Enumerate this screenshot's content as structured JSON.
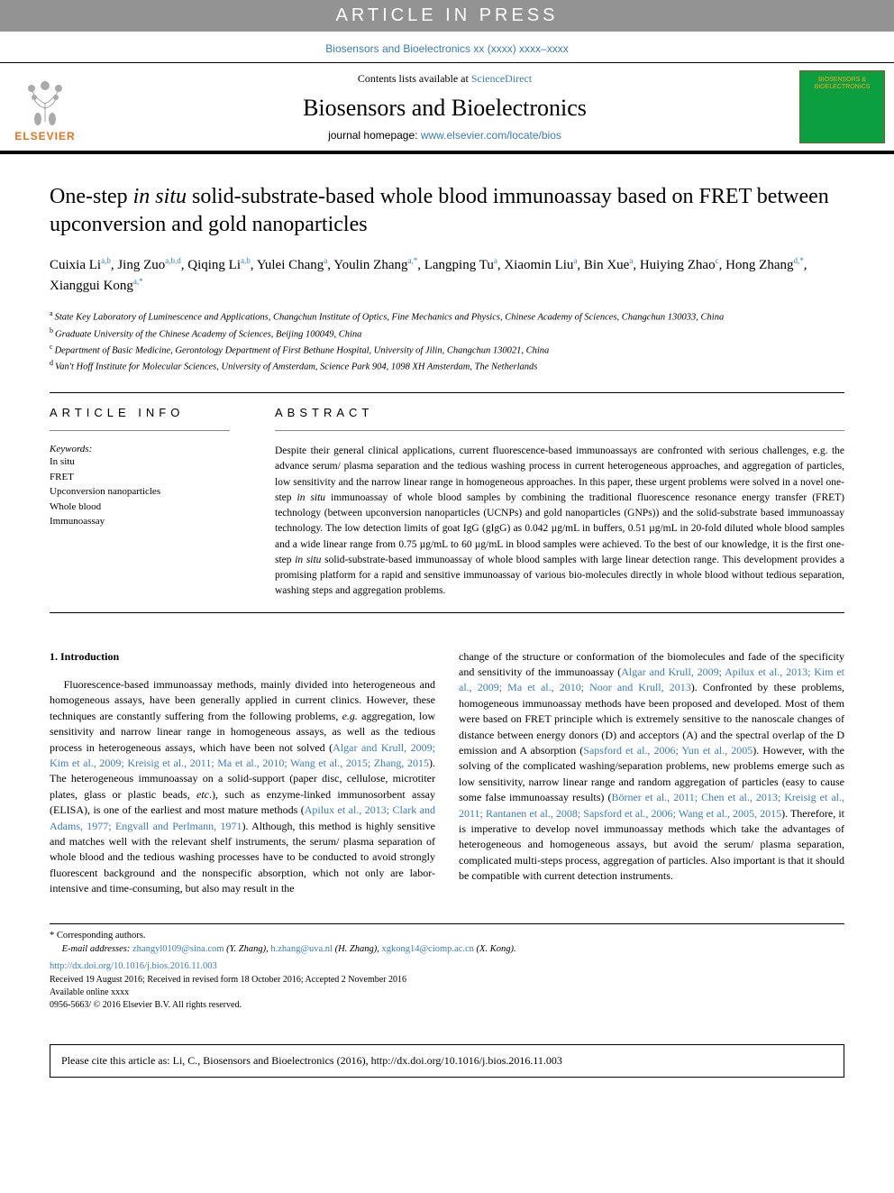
{
  "banner": "ARTICLE IN PRESS",
  "top_citation": "Biosensors and Bioelectronics xx (xxxx) xxxx–xxxx",
  "header": {
    "contents_text": "Contents lists available at ",
    "sciencedirect": "ScienceDirect",
    "journal": "Biosensors and Bioelectronics",
    "homepage_label": "journal homepage: ",
    "homepage_url": "www.elsevier.com/locate/bios",
    "publisher": "ELSEVIER",
    "cover_title": "BIOSENSORS\n& BIOELECTRONICS"
  },
  "title": {
    "pre": "One-step ",
    "italic1": "in situ",
    "rest": " solid-substrate-based whole blood immunoassay based on FRET between upconversion and gold nanoparticles"
  },
  "authors": [
    {
      "name": "Cuixia Li",
      "affs": "a,b"
    },
    {
      "name": "Jing Zuo",
      "affs": "a,b,d"
    },
    {
      "name": "Qiqing Li",
      "affs": "a,b"
    },
    {
      "name": "Yulei Chang",
      "affs": "a"
    },
    {
      "name": "Youlin Zhang",
      "affs": "a,*"
    },
    {
      "name": "Langping Tu",
      "affs": "a"
    },
    {
      "name": "Xiaomin Liu",
      "affs": "a"
    },
    {
      "name": "Bin Xue",
      "affs": "a"
    },
    {
      "name": "Huiying Zhao",
      "affs": "c"
    },
    {
      "name": "Hong Zhang",
      "affs": "d,*"
    },
    {
      "name": "Xianggui Kong",
      "affs": "a,*"
    }
  ],
  "affiliations": [
    {
      "sup": "a",
      "text": "State Key Laboratory of Luminescence and Applications, Changchun Institute of Optics, Fine Mechanics and Physics, Chinese Academy of Sciences, Changchun 130033, China"
    },
    {
      "sup": "b",
      "text": "Graduate University of the Chinese Academy of Sciences, Beijing 100049, China"
    },
    {
      "sup": "c",
      "text": "Department of Basic Medicine, Gerontology Department of First Bethune Hospital, University of Jilin, Changchun 130021, China"
    },
    {
      "sup": "d",
      "text": "Van't Hoff Institute for Molecular Sciences, University of Amsterdam, Science Park 904, 1098 XH Amsterdam, The Netherlands"
    }
  ],
  "info_heading": "ARTICLE INFO",
  "abstract_heading": "ABSTRACT",
  "keywords_label": "Keywords:",
  "keywords": [
    "In situ",
    "FRET",
    "Upconversion nanoparticles",
    "Whole blood",
    "Immunoassay"
  ],
  "abstract": {
    "p1a": "Despite their general clinical applications, current fluorescence-based immunoassays are confronted with serious challenges, e.g. the advance serum/ plasma separation and the tedious washing process in current heterogeneous approaches, and aggregation of particles, low sensitivity and the narrow linear range in homogeneous approaches. In this paper, these urgent problems were solved in a novel one-step ",
    "it1": "in situ",
    "p1b": " immunoassay of whole blood samples by combining the traditional fluorescence resonance energy transfer (FRET) technology (between upconversion nanoparticles (UCNPs) and gold nanoparticles (GNPs)) and the solid-substrate based immunoassay technology. The low detection limits of goat IgG (gIgG) as 0.042 µg/mL in buffers, 0.51 µg/mL in 20-fold diluted whole blood samples and a wide linear range from 0.75 µg/mL to 60 µg/mL in blood samples were achieved. To the best of our knowledge, it is the first one-step ",
    "it2": "in situ",
    "p1c": " solid-substrate-based immunoassay of whole blood samples with large linear detection range. This development provides a promising platform for a rapid and sensitive immunoassay of various bio-molecules directly in whole blood without tedious separation, washing steps and aggregation problems."
  },
  "intro_heading": "1. Introduction",
  "intro": {
    "col1_p1a": "Fluorescence-based immunoassay methods, mainly divided into heterogeneous and homogeneous assays, have been generally applied in current clinics. However, these techniques are constantly suffering from the following problems, ",
    "col1_p1_eg": "e.g.",
    "col1_p1b": " aggregation, low sensitivity and narrow linear range in homogeneous assays, as well as the tedious process in heterogeneous assays, which have been not solved (",
    "col1_r1": "Algar and Krull, 2009; Kim et al., 2009; Kreisig et al., 2011; Ma et al., 2010; Wang et al., 2015; Zhang, 2015",
    "col1_p1c": "). The heterogeneous immunoassay on a solid-support (paper disc, cellulose, microtiter plates, glass or plastic beads, ",
    "col1_p1_etc": "etc",
    "col1_p1d": ".), such as enzyme-linked immunosorbent assay (ELISA), is one of the earliest and most mature methods (",
    "col1_r2": "Apilux et al., 2013; Clark and Adams, 1977; Engvall and Perlmann, 1971",
    "col1_p1e": "). Although, this method is highly sensitive and matches well with the relevant shelf instruments, the serum/ plasma separation of whole blood and the tedious washing processes have to be conducted to avoid strongly fluorescent background and the nonspecific absorption, which not only are labor-intensive and time-consuming, but also may result in the",
    "col2_p1a": "change of the structure or conformation of the biomolecules and fade of the specificity and sensitivity of the immunoassay (",
    "col2_r1": "Algar and Krull, 2009; Apilux et al., 2013; Kim et al., 2009; Ma et al., 2010; Noor and Krull, 2013",
    "col2_p1b": "). Confronted by these problems, homogeneous immunoassay methods have been proposed and developed. Most of them were based on FRET principle which is extremely sensitive to the nanoscale changes of distance between energy donors (D) and acceptors (A) and the spectral overlap of the D emission and A absorption (",
    "col2_r2": "Sapsford et al., 2006; Yun et al., 2005",
    "col2_p1c": "). However, with the solving of the complicated washing/separation problems, new problems emerge such as low sensitivity, narrow linear range and random aggregation of particles (easy to cause some false immunoassay results) (",
    "col2_r3": "Börner et al., 2011; Chen et al., 2013; Kreisig et al., 2011; Rantanen et al., 2008; Sapsford et al., 2006; Wang et al., 2005, 2015",
    "col2_p1d": "). Therefore, it is imperative to develop novel immunoassay methods which take the advantages of heterogeneous and homogeneous assays, but avoid the serum/ plasma separation, complicated multi-steps process, aggregation of particles. Also important is that it should be compatible with current detection instruments."
  },
  "footer": {
    "corresponding": "* Corresponding authors.",
    "email_label": "E-mail addresses: ",
    "emails": [
      {
        "addr": "zhangyl0109@sina.com",
        "who": " (Y. Zhang), "
      },
      {
        "addr": "h.zhang@uva.nl",
        "who": " (H. Zhang), "
      },
      {
        "addr": "xgkong14@ciomp.ac.cn",
        "who": " (X. Kong)."
      }
    ],
    "doi": "http://dx.doi.org/10.1016/j.bios.2016.11.003",
    "dates": "Received 19 August 2016; Received in revised form 18 October 2016; Accepted 2 November 2016",
    "available": "Available online xxxx",
    "copyright": "0956-5663/ © 2016 Elsevier B.V. All rights reserved."
  },
  "citation_box": "Please cite this article as: Li, C., Biosensors and Bioelectronics (2016), http://dx.doi.org/10.1016/j.bios.2016.11.003"
}
